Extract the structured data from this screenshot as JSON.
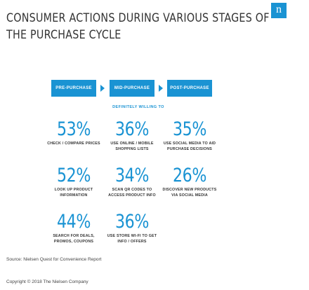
{
  "header": {
    "title_line1": "CONSUMER ACTIONS DURING VARIOUS STAGES OF",
    "title_line2": "THE PURCHASE CYCLE",
    "logo_letter": "n"
  },
  "stages": [
    "PRE-PURCHASE",
    "MID-PURCHASE",
    "POST-PURCHASE"
  ],
  "subhead": "DEFINITELY WILLING TO",
  "stats": [
    {
      "value": "53%",
      "line1": "CHECK / COMPARE PRICES",
      "line2": ""
    },
    {
      "value": "36%",
      "line1": "USE ONLINE / MOBILE",
      "line2": "SHOPPING LISTS"
    },
    {
      "value": "35%",
      "line1": "USE SOCIAL MEDIA TO AID",
      "line2": "PURCHASE DECISIONS"
    },
    {
      "value": "52%",
      "line1": "LOOK UP PRODUCT",
      "line2": "INFORMATION"
    },
    {
      "value": "34%",
      "line1": "SCAN QR CODES TO",
      "line2": "ACCESS PRODUCT INFO"
    },
    {
      "value": "26%",
      "line1": "DISCOVER NEW PRODUCTS",
      "line2": "VIA SOCIAL MEDIA"
    },
    {
      "value": "44%",
      "line1": "SEARCH FOR DEALS,",
      "line2": "PROMOS, COUPONS"
    },
    {
      "value": "36%",
      "line1": "USE STORE WI-FI TO GET",
      "line2": "INFO / OFFERS"
    }
  ],
  "footer": {
    "source": "Source: Nielsen Quest for Convenience Report",
    "copyright": "Copyright © 2018 The Nielsen Company"
  },
  "colors": {
    "accent": "#1a93d3",
    "text": "#333333"
  }
}
